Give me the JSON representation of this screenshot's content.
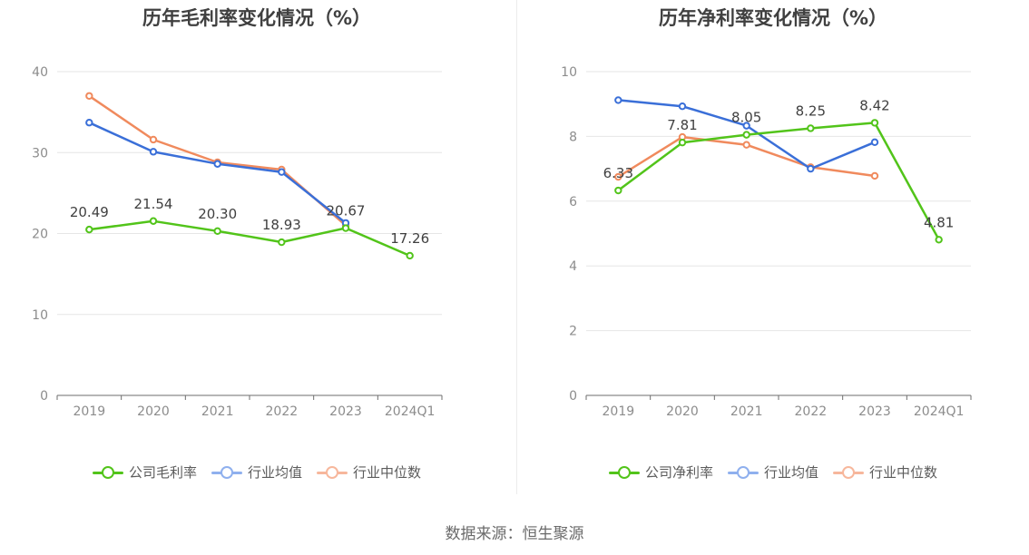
{
  "footer": {
    "source": "数据来源：恒生聚源"
  },
  "chart_data": [
    {
      "type": "line",
      "title": "历年毛利率变化情况（%）",
      "categories": [
        "2019",
        "2020",
        "2021",
        "2022",
        "2023",
        "2024Q1"
      ],
      "ylim": [
        0,
        40
      ],
      "yticks": [
        0,
        10,
        20,
        30,
        40
      ],
      "grid": true,
      "legend_position": "bottom",
      "series": [
        {
          "name": "公司毛利率",
          "color": "#52c41a",
          "values": [
            20.49,
            21.54,
            20.3,
            18.93,
            20.67,
            17.26
          ],
          "labels": [
            "20.49",
            "21.54",
            "20.30",
            "18.93",
            "20.67",
            "17.26"
          ]
        },
        {
          "name": "行业均值",
          "color": "#3a6fd8",
          "values": [
            33.7,
            30.1,
            28.6,
            27.6,
            21.3,
            null
          ]
        },
        {
          "name": "行业中位数",
          "color": "#f08a5d",
          "values": [
            37.0,
            31.6,
            28.8,
            27.9,
            21.0,
            null
          ]
        }
      ]
    },
    {
      "type": "line",
      "title": "历年净利率变化情况（%）",
      "categories": [
        "2019",
        "2020",
        "2021",
        "2022",
        "2023",
        "2024Q1"
      ],
      "ylim": [
        0,
        10
      ],
      "yticks": [
        0,
        2,
        4,
        6,
        8,
        10
      ],
      "grid": true,
      "legend_position": "bottom",
      "series": [
        {
          "name": "公司净利率",
          "color": "#52c41a",
          "values": [
            6.33,
            7.81,
            8.05,
            8.25,
            8.42,
            4.81
          ],
          "labels": [
            "6.33",
            "7.81",
            "8.05",
            "8.25",
            "8.42",
            "4.81"
          ]
        },
        {
          "name": "行业均值",
          "color": "#3a6fd8",
          "values": [
            9.12,
            8.93,
            8.33,
            7.0,
            7.82,
            null
          ]
        },
        {
          "name": "行业中位数",
          "color": "#f08a5d",
          "values": [
            6.75,
            7.98,
            7.74,
            7.05,
            6.78,
            null
          ]
        }
      ]
    }
  ]
}
